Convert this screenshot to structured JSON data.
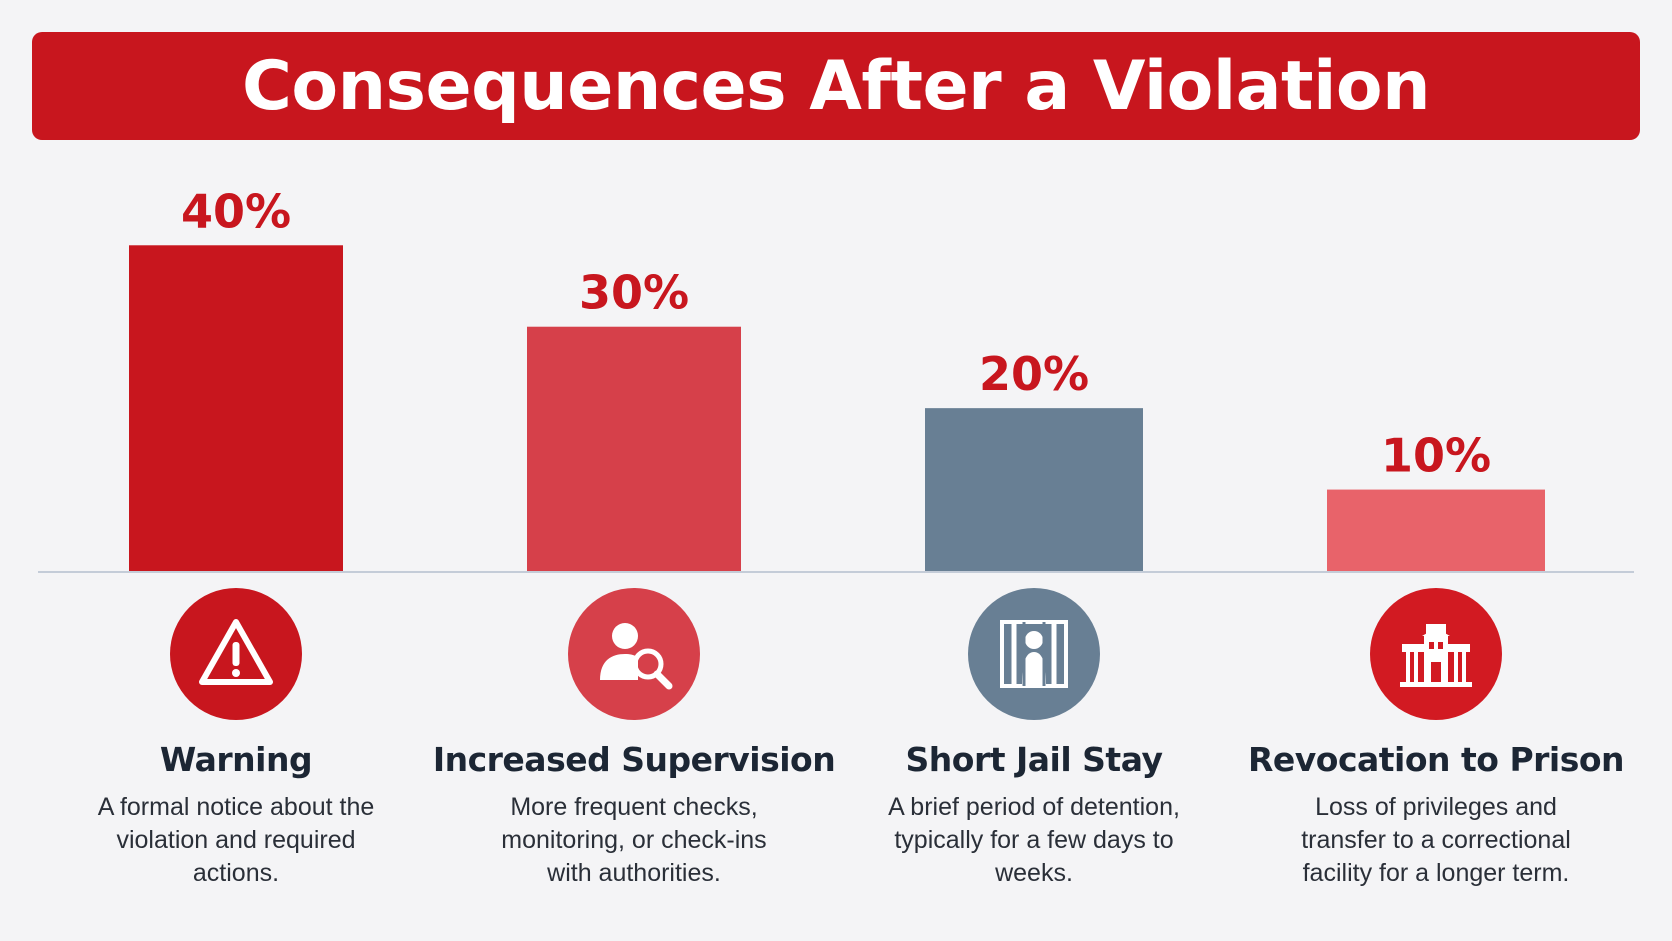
{
  "chart_data": {
    "type": "bar",
    "title": "Consequences After a Violation",
    "categories": [
      "Warning",
      "Increased Supervision",
      "Short Jail Stay",
      "Revocation to Prison"
    ],
    "values": [
      40,
      30,
      20,
      10
    ],
    "value_labels": [
      "40%",
      "30%",
      "20%",
      "10%"
    ],
    "bar_colors": [
      "#c8161e",
      "#d6404a",
      "#687f94",
      "#e8636a"
    ],
    "ylim": [
      0,
      42
    ],
    "grid": false,
    "legend": "none",
    "xlabel": "",
    "ylabel": ""
  },
  "details": [
    {
      "icon": "warning-triangle-icon",
      "icon_color": "#c8161e",
      "description": "A formal notice about the violation and required actions."
    },
    {
      "icon": "person-search-icon",
      "icon_color": "#d6404a",
      "description": "More frequent checks, monitoring, or check-ins with authorities."
    },
    {
      "icon": "jail-bars-icon",
      "icon_color": "#687f94",
      "description": "A brief period of detention, typically for a few days to weeks."
    },
    {
      "icon": "prison-building-icon",
      "icon_color": "#d21a22",
      "description": "Loss of privileges and transfer to a correctional facility for a longer term."
    }
  ]
}
